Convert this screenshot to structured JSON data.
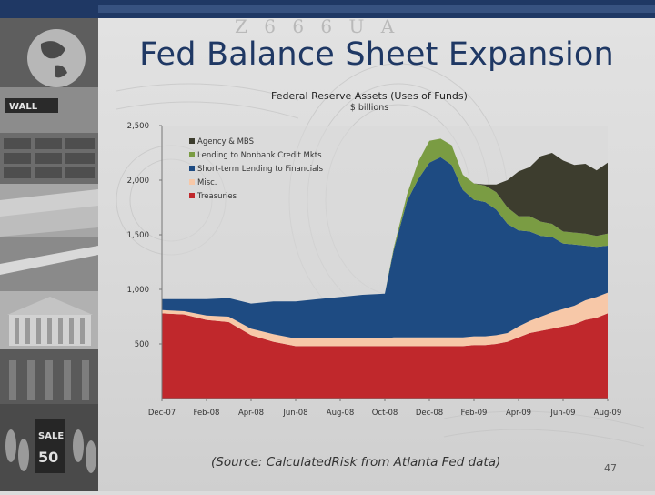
{
  "slide": {
    "title": "Fed Balance Sheet Expansion",
    "source_note": "(Source:  CalculatedRisk from Atlanta Fed data)",
    "page_number": "47",
    "banner_text": "Z 6 6 6 U A",
    "colors": {
      "title": "#1f3864",
      "top_bar": "#1f3864"
    }
  },
  "chart_data": {
    "type": "area",
    "stacked": true,
    "title": "Federal Reserve Assets (Uses of Funds)",
    "subtitle": "$ billions",
    "xlabel": "",
    "ylabel": "",
    "ylim": [
      0,
      2500
    ],
    "yticks": [
      500,
      1000,
      1500,
      2000,
      2500
    ],
    "ytick_labels": [
      "500",
      "1,000",
      "1,500",
      "2,000",
      "2,500"
    ],
    "xtick_labels": [
      "Dec-07",
      "Feb-08",
      "Apr-08",
      "Jun-08",
      "Aug-08",
      "Oct-08",
      "Dec-08",
      "Feb-09",
      "Apr-09",
      "Jun-09",
      "Aug-09"
    ],
    "grid": false,
    "legend_position": "top-left",
    "x": [
      0,
      0.5,
      1,
      1.5,
      2,
      2.5,
      3,
      3.5,
      4,
      4.5,
      5,
      5.2,
      5.5,
      5.75,
      6,
      6.25,
      6.5,
      6.75,
      7,
      7.25,
      7.5,
      7.75,
      8,
      8.25,
      8.5,
      8.75,
      9,
      9.25,
      9.5,
      9.75,
      10
    ],
    "series": [
      {
        "name": "Treasuries",
        "color": "#c0282c",
        "values": [
          780,
          770,
          720,
          700,
          580,
          520,
          480,
          480,
          480,
          480,
          480,
          480,
          480,
          480,
          480,
          480,
          480,
          480,
          490,
          490,
          500,
          520,
          560,
          600,
          620,
          640,
          660,
          680,
          720,
          740,
          780
        ]
      },
      {
        "name": "Misc.",
        "color": "#f7c8a8",
        "values": [
          30,
          30,
          40,
          50,
          60,
          70,
          70,
          70,
          70,
          70,
          70,
          80,
          80,
          80,
          80,
          80,
          80,
          80,
          80,
          80,
          80,
          80,
          100,
          110,
          130,
          150,
          160,
          170,
          180,
          190,
          190
        ]
      },
      {
        "name": "Short-term Lending to Financials",
        "color": "#1e4b82",
        "values": [
          100,
          110,
          150,
          170,
          230,
          300,
          340,
          360,
          380,
          400,
          410,
          800,
          1250,
          1450,
          1600,
          1650,
          1580,
          1350,
          1250,
          1230,
          1150,
          1000,
          880,
          820,
          740,
          690,
          600,
          560,
          500,
          460,
          430
        ]
      },
      {
        "name": "Lending to Nonbank Credit Mkts",
        "color": "#7a9c43",
        "values": [
          0,
          0,
          0,
          0,
          0,
          0,
          0,
          0,
          0,
          0,
          0,
          20,
          60,
          160,
          200,
          170,
          180,
          140,
          150,
          150,
          160,
          150,
          130,
          140,
          130,
          120,
          110,
          110,
          110,
          100,
          110
        ]
      },
      {
        "name": "Agency & MBS",
        "color": "#3d3d2e",
        "values": [
          0,
          0,
          0,
          0,
          0,
          0,
          0,
          0,
          0,
          0,
          0,
          0,
          0,
          0,
          0,
          0,
          0,
          0,
          0,
          10,
          70,
          250,
          410,
          450,
          600,
          650,
          650,
          620,
          640,
          600,
          650
        ]
      }
    ],
    "legend": [
      "Agency & MBS",
      "Lending to Nonbank Credit Mkts",
      "Short-term Lending to Financials",
      "Misc.",
      "Treasuries"
    ]
  }
}
